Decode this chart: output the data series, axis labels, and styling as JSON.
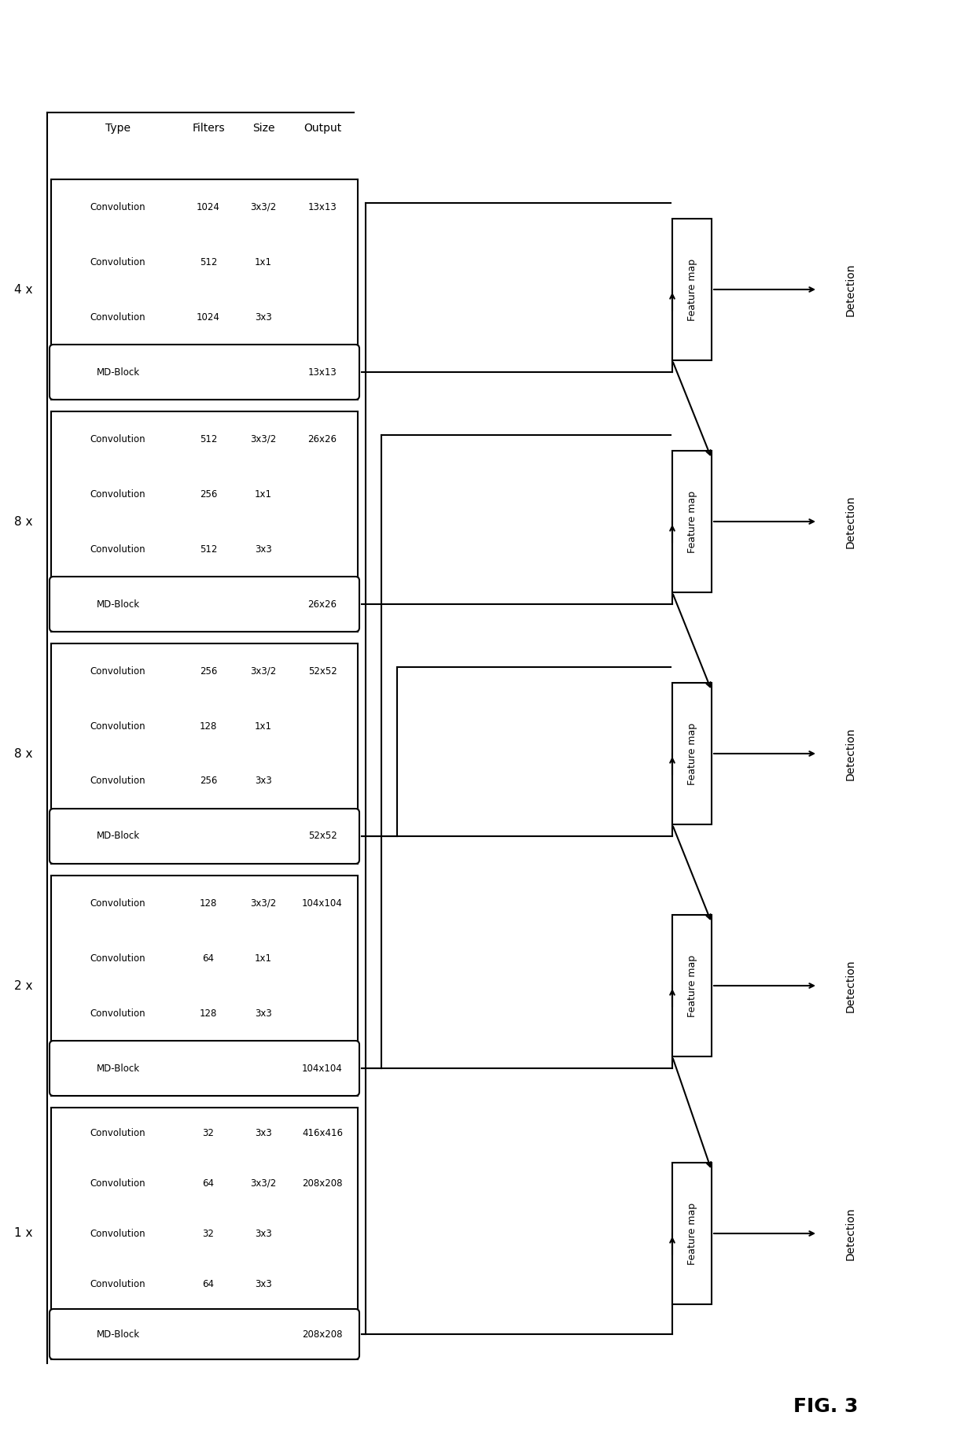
{
  "title": "FIG. 3",
  "table_header": [
    "Type",
    "Filters",
    "Size",
    "Output"
  ],
  "groups": [
    {
      "repeat": "1 x",
      "rows": [
        {
          "type": "Convolution",
          "filters": "32",
          "size": "3x3",
          "output": "416x416"
        },
        {
          "type": "Convolution",
          "filters": "64",
          "size": "3x3/2",
          "output": "208x208"
        },
        {
          "type": "Convolution",
          "filters": "32",
          "size": "3x3",
          "output": ""
        },
        {
          "type": "Convolution",
          "filters": "64",
          "size": "3x3",
          "output": ""
        },
        {
          "type": "MD-Block",
          "filters": "",
          "size": "",
          "output": "208x208"
        }
      ],
      "md_block_output": "208x208"
    },
    {
      "repeat": "2 x",
      "rows": [
        {
          "type": "Convolution",
          "filters": "128",
          "size": "3x3/2",
          "output": "104x104"
        },
        {
          "type": "Convolution",
          "filters": "64",
          "size": "1x1",
          "output": ""
        },
        {
          "type": "Convolution",
          "filters": "128",
          "size": "3x3",
          "output": ""
        },
        {
          "type": "MD-Block",
          "filters": "",
          "size": "",
          "output": "104x104"
        }
      ],
      "md_block_output": "104x104"
    },
    {
      "repeat": "8 x",
      "rows": [
        {
          "type": "Convolution",
          "filters": "256",
          "size": "3x3/2",
          "output": "52x52"
        },
        {
          "type": "Convolution",
          "filters": "128",
          "size": "1x1",
          "output": ""
        },
        {
          "type": "Convolution",
          "filters": "256",
          "size": "3x3",
          "output": ""
        },
        {
          "type": "MD-Block",
          "filters": "",
          "size": "",
          "output": "52x52"
        }
      ],
      "md_block_output": "52x52"
    },
    {
      "repeat": "8 x",
      "rows": [
        {
          "type": "Convolution",
          "filters": "512",
          "size": "3x3/2",
          "output": "26x26"
        },
        {
          "type": "Convolution",
          "filters": "256",
          "size": "1x1",
          "output": ""
        },
        {
          "type": "Convolution",
          "filters": "512",
          "size": "3x3",
          "output": ""
        },
        {
          "type": "MD-Block",
          "filters": "",
          "size": "",
          "output": "26x26"
        }
      ],
      "md_block_output": "26x26"
    },
    {
      "repeat": "4 x",
      "rows": [
        {
          "type": "Convolution",
          "filters": "1024",
          "size": "3x3/2",
          "output": "13x13"
        },
        {
          "type": "Convolution",
          "filters": "512",
          "size": "1x1",
          "output": ""
        },
        {
          "type": "Convolution",
          "filters": "1024",
          "size": "3x3",
          "output": ""
        },
        {
          "type": "MD-Block",
          "filters": "",
          "size": "",
          "output": "13x13"
        }
      ],
      "md_block_output": "13x13"
    }
  ],
  "feature_map_labels": [
    "Feature map",
    "Feature map",
    "Feature map",
    "Feature map",
    "Feature map"
  ],
  "detection_labels": [
    "Detection",
    "Detection",
    "Detection",
    "Detection",
    "Detection"
  ],
  "background_color": "#ffffff",
  "box_color": "#000000",
  "text_color": "#000000",
  "line_color": "#000000"
}
